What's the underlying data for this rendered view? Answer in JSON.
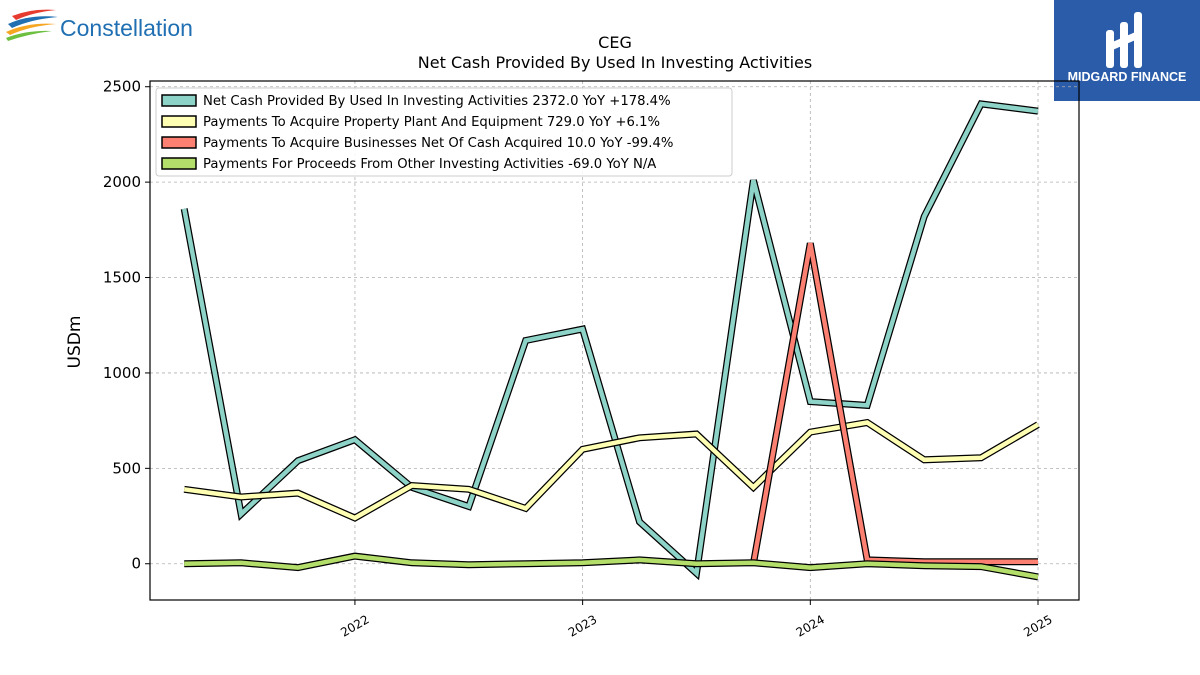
{
  "branding": {
    "company_name": "Constellation",
    "publisher_name": "MIDGARD FINANCE"
  },
  "colors": {
    "net_cash": "#8dd3c7",
    "ppe": "#ffffb3",
    "businesses": "#fb8072",
    "other": "#b3de69",
    "publisher_bg": "#2a5caa",
    "company_text": "#1f6fb2"
  },
  "chart_data": {
    "type": "line",
    "title": "CEG",
    "subtitle": "Net Cash Provided By Used In Investing Activities",
    "xlabel": "",
    "ylabel": "USDm",
    "ylim": [
      -190,
      2530
    ],
    "yticks": [
      0,
      500,
      1000,
      1500,
      2000,
      2500
    ],
    "xlim": [
      2021.1,
      2025.18
    ],
    "xticks": [
      {
        "value": 2022,
        "label": "2022"
      },
      {
        "value": 2023,
        "label": "2023"
      },
      {
        "value": 2024,
        "label": "2024"
      },
      {
        "value": 2025,
        "label": "2025"
      }
    ],
    "grid": true,
    "legend_position": "top-left",
    "x": [
      2021.25,
      2021.5,
      2021.75,
      2022.0,
      2022.25,
      2022.5,
      2022.75,
      2023.0,
      2023.25,
      2023.5,
      2023.75,
      2024.0,
      2024.25,
      2024.5,
      2024.75,
      2025.0
    ],
    "series": [
      {
        "name": "Net Cash Provided By Used In Investing Activities",
        "legend_label": "Net Cash Provided By Used In Investing Activities  2372.0 YoY +178.4%",
        "color": "#8dd3c7",
        "values": [
          1860,
          260,
          540,
          650,
          400,
          300,
          1170,
          1230,
          220,
          -50,
          2010,
          850,
          830,
          1820,
          2410,
          2372
        ]
      },
      {
        "name": "Payments To Acquire Property Plant And Equipment",
        "legend_label": "Payments To Acquire Property Plant And Equipment  729.0 YoY +6.1%",
        "color": "#ffffb3",
        "values": [
          390,
          350,
          370,
          240,
          410,
          390,
          290,
          600,
          660,
          680,
          400,
          690,
          740,
          545,
          555,
          729
        ]
      },
      {
        "name": "Payments To Acquire Businesses Net Of Cash Acquired",
        "legend_label": "Payments To Acquire Businesses Net Of Cash Acquired  10.0 YoY -99.4%",
        "color": "#fb8072",
        "x": [
          2023.75,
          2024.0,
          2024.25,
          2024.5,
          2024.75,
          2025.0
        ],
        "values": [
          0,
          1680,
          20,
          10,
          10,
          10
        ]
      },
      {
        "name": "Payments For Proceeds From Other Investing Activities",
        "legend_label": "Payments For Proceeds From Other Investing Activities  -69.0 YoY N/A",
        "color": "#b3de69",
        "values": [
          0,
          5,
          -20,
          40,
          5,
          -5,
          0,
          5,
          20,
          0,
          5,
          -20,
          0,
          -10,
          -15,
          -69
        ]
      }
    ]
  }
}
